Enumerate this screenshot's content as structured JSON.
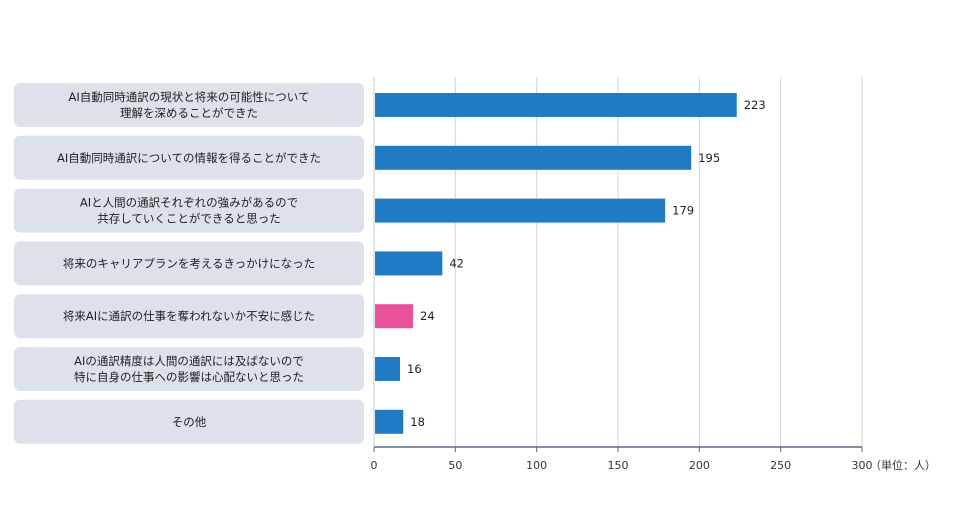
{
  "chart_data": {
    "type": "bar",
    "orientation": "horizontal",
    "categories": [
      [
        "AI自動同時通訳の現状と将来の可能性について",
        "理解を深めることができた"
      ],
      [
        "AI自動同時通訳についての情報を得ることができた"
      ],
      [
        "AIと人間の通訳それぞれの強みがあるので",
        "共存していくことができると思った"
      ],
      [
        "将来のキャリアプランを考えるきっかけになった"
      ],
      [
        "将来AIに通訳の仕事を奪われないか不安に感じた"
      ],
      [
        "AIの通訳精度は人間の通訳には及ばないので",
        "特に自身の仕事への影響は心配ないと思った"
      ],
      [
        "その他"
      ]
    ],
    "values": [
      223,
      195,
      179,
      42,
      24,
      16,
      18
    ],
    "bar_colors": [
      "#1f7cc4",
      "#1f7cc4",
      "#1f7cc4",
      "#1f7cc4",
      "#e8529a",
      "#1f7cc4",
      "#1f7cc4"
    ],
    "xlim": [
      0,
      300
    ],
    "xticks": [
      0,
      50,
      100,
      150,
      200,
      250,
      300
    ],
    "unit_label": "（単位：人）",
    "grid": true,
    "label_box_color": "#dde1ea"
  }
}
